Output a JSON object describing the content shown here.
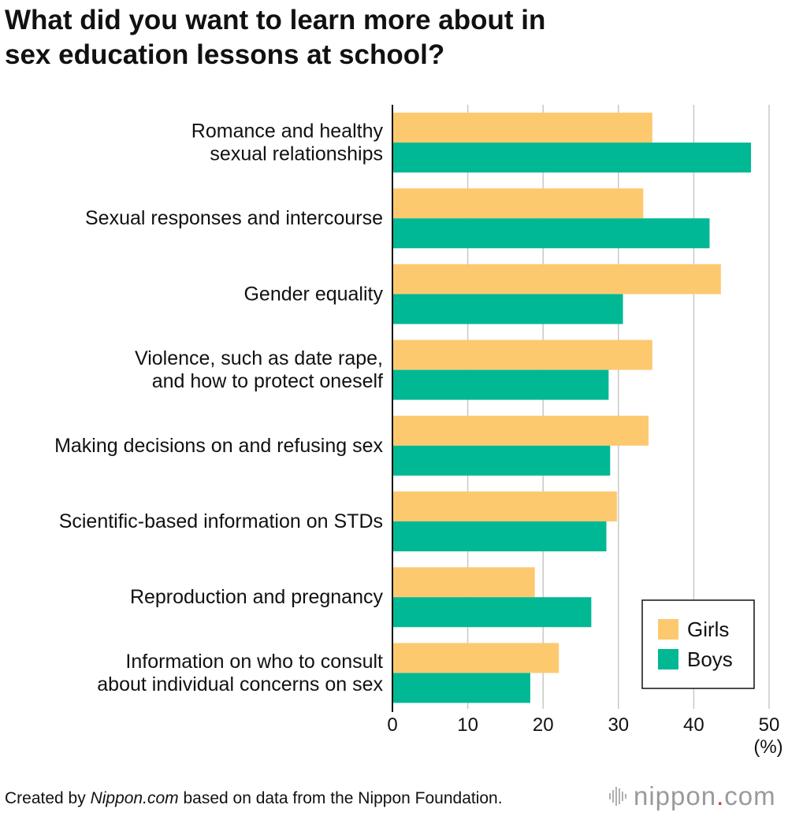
{
  "title_lines": [
    "What did you want to learn more about in",
    "sex education lessons at school?"
  ],
  "chart_data": {
    "type": "bar",
    "orientation": "horizontal",
    "title": "What did you want to learn more about in sex education lessons at school?",
    "categories": [
      [
        "Romance and healthy",
        "sexual relationships"
      ],
      [
        "Sexual responses and intercourse"
      ],
      [
        "Gender equality"
      ],
      [
        "Violence, such as date rape,",
        "and how to protect oneself"
      ],
      [
        "Making decisions on and refusing sex"
      ],
      [
        "Scientific-based information on STDs"
      ],
      [
        "Reproduction and pregnancy"
      ],
      [
        "Information on who to consult",
        "about individual concerns on sex"
      ]
    ],
    "series": [
      {
        "name": "Girls",
        "color": "#fdc96f",
        "values": [
          34.5,
          33.3,
          43.6,
          34.5,
          34.0,
          29.8,
          18.9,
          22.1
        ]
      },
      {
        "name": "Boys",
        "color": "#00b894",
        "values": [
          47.6,
          42.1,
          30.6,
          28.7,
          28.9,
          28.4,
          26.4,
          18.3
        ]
      }
    ],
    "xlim": [
      0,
      50
    ],
    "xticks": [
      0,
      10,
      20,
      30,
      40,
      50
    ],
    "xlabel": "(%)",
    "grid": true,
    "legend": [
      "Girls",
      "Boys"
    ]
  },
  "footer": {
    "prefix": "Created by ",
    "source_name": "Nippon.com",
    "suffix": " based on data from the Nippon Foundation."
  },
  "brand": {
    "name": "nippon",
    "dot": ".",
    "tld": "com"
  }
}
